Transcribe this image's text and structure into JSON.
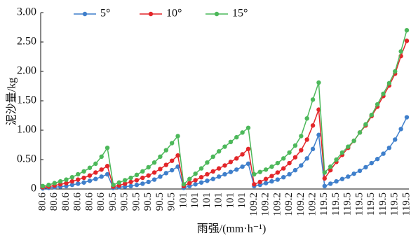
{
  "chart_data": {
    "type": "line",
    "y_label": "泥沙量/kg",
    "x_label": "雨强/(mm·h⁻¹)",
    "categories": [
      "80.6",
      null,
      "80.6",
      null,
      "80.6",
      null,
      "80.6",
      null,
      "80.6",
      null,
      "80.6",
      null,
      "90.5",
      null,
      "90.5",
      null,
      "90.5",
      null,
      "90.5",
      null,
      "90.5",
      null,
      "90.5",
      null,
      "101",
      null,
      "101",
      null,
      "101",
      null,
      "101",
      null,
      "101",
      null,
      "101",
      null,
      "109.2",
      null,
      "109.2",
      null,
      "109.2",
      null,
      "109.2",
      null,
      "109.2",
      null,
      "109.2",
      null,
      "119.5",
      null,
      "119.5",
      null,
      "119.5",
      null,
      "119.5",
      null,
      "119.5",
      null,
      "119.5",
      null,
      "119.5",
      null,
      "119.5"
    ],
    "series": [
      {
        "name": "5°",
        "color": "#3f7fcb",
        "values": [
          0.01,
          0.02,
          0.03,
          0.04,
          0.05,
          0.07,
          0.09,
          0.11,
          0.14,
          0.17,
          0.21,
          0.25,
          0.02,
          0.03,
          0.04,
          0.05,
          0.07,
          0.09,
          0.12,
          0.16,
          0.21,
          0.27,
          0.32,
          0.38,
          0.02,
          0.05,
          0.08,
          0.11,
          0.14,
          0.17,
          0.21,
          0.25,
          0.29,
          0.33,
          0.38,
          0.43,
          0.05,
          0.07,
          0.1,
          0.13,
          0.16,
          0.2,
          0.25,
          0.32,
          0.4,
          0.52,
          0.68,
          0.92,
          0.05,
          0.09,
          0.13,
          0.17,
          0.21,
          0.26,
          0.31,
          0.37,
          0.44,
          0.51,
          0.6,
          0.7,
          0.84,
          1.02,
          1.22
        ]
      },
      {
        "name": "10°",
        "color": "#e3262a",
        "values": [
          0.03,
          0.04,
          0.06,
          0.08,
          0.1,
          0.13,
          0.16,
          0.19,
          0.23,
          0.28,
          0.33,
          0.39,
          0.04,
          0.06,
          0.09,
          0.12,
          0.15,
          0.19,
          0.23,
          0.28,
          0.34,
          0.41,
          0.48,
          0.57,
          0.05,
          0.1,
          0.15,
          0.2,
          0.25,
          0.3,
          0.35,
          0.4,
          0.46,
          0.52,
          0.59,
          0.68,
          0.08,
          0.12,
          0.17,
          0.22,
          0.28,
          0.35,
          0.44,
          0.54,
          0.66,
          0.84,
          1.08,
          1.35,
          0.18,
          0.32,
          0.46,
          0.58,
          0.7,
          0.82,
          0.96,
          1.08,
          1.24,
          1.4,
          1.58,
          1.76,
          1.96,
          2.26,
          2.52
        ]
      },
      {
        "name": "15°",
        "color": "#4cb85a",
        "values": [
          0.05,
          0.07,
          0.1,
          0.13,
          0.16,
          0.2,
          0.25,
          0.3,
          0.36,
          0.43,
          0.55,
          0.7,
          0.07,
          0.11,
          0.15,
          0.19,
          0.24,
          0.3,
          0.37,
          0.45,
          0.55,
          0.66,
          0.78,
          0.9,
          0.08,
          0.17,
          0.26,
          0.35,
          0.45,
          0.55,
          0.64,
          0.72,
          0.8,
          0.88,
          0.96,
          1.04,
          0.25,
          0.29,
          0.33,
          0.38,
          0.44,
          0.52,
          0.62,
          0.74,
          0.9,
          1.2,
          1.52,
          1.81,
          0.28,
          0.38,
          0.5,
          0.62,
          0.72,
          0.82,
          0.96,
          1.1,
          1.26,
          1.44,
          1.62,
          1.8,
          2.0,
          2.34,
          2.7
        ]
      }
    ],
    "ylim": [
      0,
      3
    ],
    "yticks": [
      0,
      {
        "value": 0.5,
        "label": "0.50"
      },
      {
        "value": 1,
        "label": "1.00"
      },
      {
        "value": 1.5,
        "label": "1.50"
      },
      {
        "value": 2,
        "label": "2.00"
      },
      {
        "value": 2.5,
        "label": "2.50"
      },
      {
        "value": 3,
        "label": "3.00"
      }
    ],
    "legend": "top"
  }
}
